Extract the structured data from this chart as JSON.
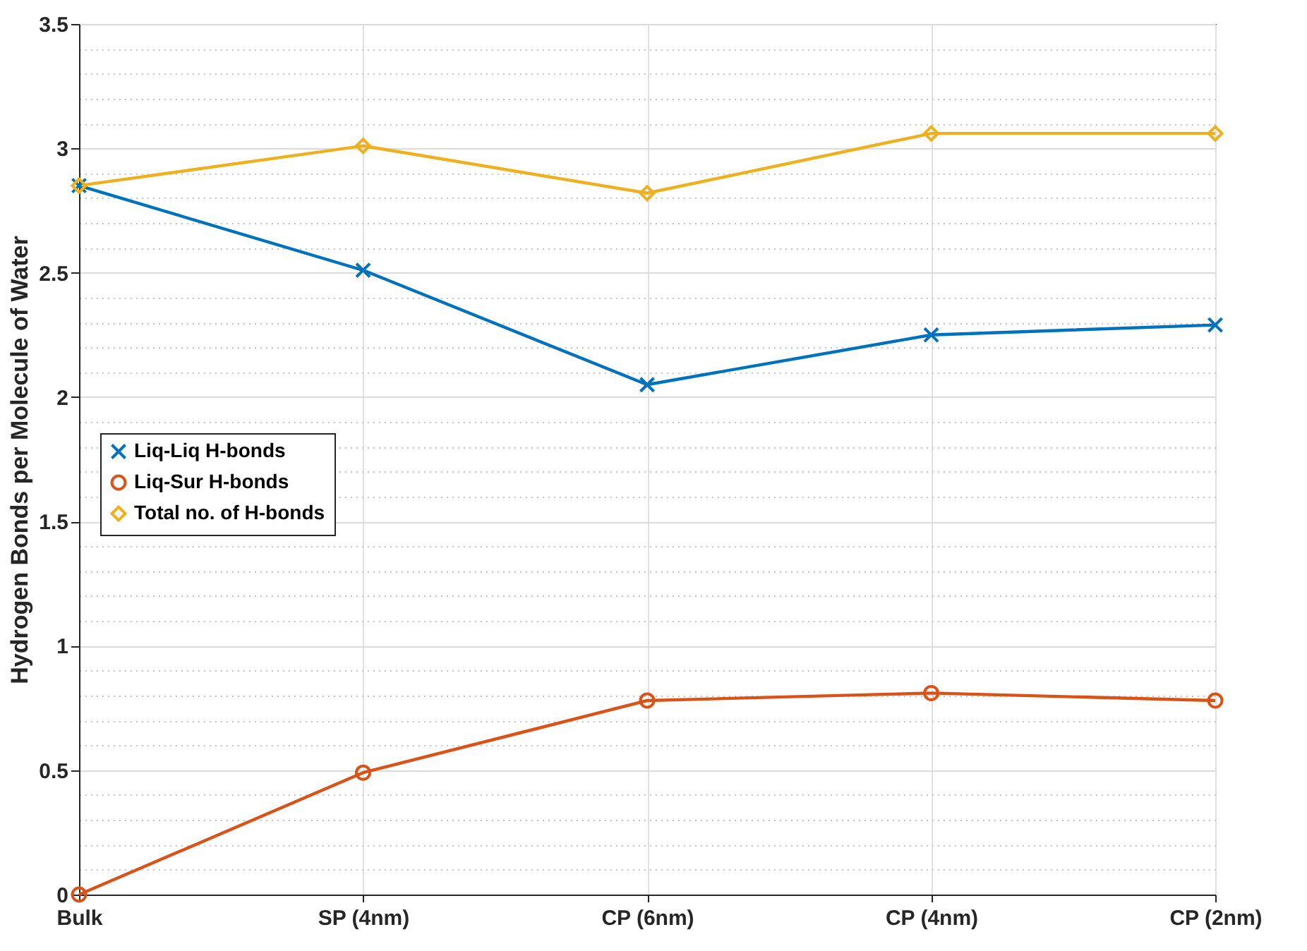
{
  "chart_data": {
    "type": "line",
    "ylabel": "Hydrogen Bonds per Molecule of Water",
    "categories": [
      "Bulk",
      "SP (4nm)",
      "CP (6nm)",
      "CP (4nm)",
      "CP (2nm)"
    ],
    "series": [
      {
        "name": "Liq-Liq H-bonds",
        "color": "#0072bd",
        "marker": "cross",
        "values": [
          2.85,
          2.51,
          2.05,
          2.25,
          2.29
        ]
      },
      {
        "name": "Liq-Sur H-bonds",
        "color": "#d95319",
        "marker": "circle",
        "values": [
          0,
          0.49,
          0.78,
          0.81,
          0.78
        ]
      },
      {
        "name": "Total no. of H-bonds",
        "color": "#edb120",
        "marker": "diamond",
        "values": [
          2.85,
          3.01,
          2.82,
          3.06,
          3.06
        ]
      }
    ],
    "ylim": [
      0,
      3.5
    ],
    "yticks": [
      0,
      {
        "value": 0.1,
        "label": null
      },
      {
        "value": 0.2,
        "label": null
      },
      {
        "value": 0.3,
        "label": null
      },
      {
        "value": 0.4,
        "label": null
      },
      0.5,
      {
        "value": 0.6,
        "label": null
      },
      {
        "value": 0.7,
        "label": null
      },
      {
        "value": 0.8,
        "label": null
      },
      {
        "value": 0.9,
        "label": null
      },
      1,
      {
        "value": 1.1,
        "label": null
      },
      {
        "value": 1.2,
        "label": null
      },
      {
        "value": 1.3,
        "label": null
      },
      {
        "value": 1.4,
        "label": null
      },
      1.5,
      {
        "value": 1.6,
        "label": null
      },
      {
        "value": 1.7,
        "label": null
      },
      {
        "value": 1.8,
        "label": null
      },
      {
        "value": 1.9,
        "label": null
      },
      2,
      {
        "value": 2.1,
        "label": null
      },
      {
        "value": 2.2,
        "label": null
      },
      {
        "value": 2.3,
        "label": null
      },
      {
        "value": 2.4,
        "label": null
      },
      2.5,
      {
        "value": 2.6,
        "label": null
      },
      {
        "value": 2.7,
        "label": null
      },
      {
        "value": 2.8,
        "label": null
      },
      {
        "value": 2.9,
        "label": null
      },
      3,
      {
        "value": 3.1,
        "label": null
      },
      {
        "value": 3.2,
        "label": null
      },
      {
        "value": 3.3,
        "label": null
      },
      {
        "value": 3.4,
        "label": null
      },
      3.5
    ],
    "grid": true,
    "legend": "left",
    "line_style": "solid"
  }
}
